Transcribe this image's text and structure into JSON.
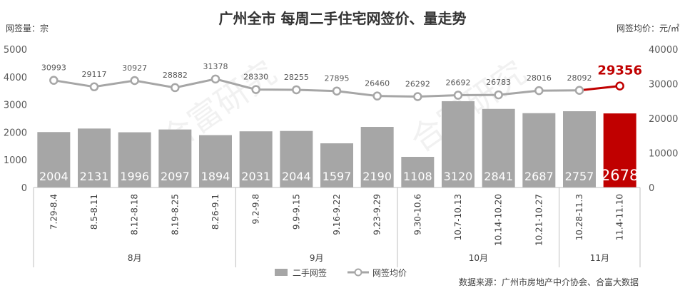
{
  "chart_data": {
    "type": "bar",
    "title": "广州全市  每周二手住宅网签价、量走势",
    "ylabel_left": "网签量：宗",
    "ylabel_right": "网签均价：元/㎡",
    "ylim_left": [
      0,
      5000
    ],
    "ylim_right": [
      0,
      40000
    ],
    "yticks_left": [
      "0",
      "1000",
      "2000",
      "3000",
      "4000",
      "5000"
    ],
    "yticks_right": [
      "0",
      "10000",
      "20000",
      "30000",
      "40000"
    ],
    "categories": [
      "7.29-8.4",
      "8.5-8.11",
      "8.12-8.18",
      "8.19-8.25",
      "8.26-9.1",
      "9.2-9.8",
      "9.9-9.15",
      "9.16-9.22",
      "9.23-9.29",
      "9.30-10.6",
      "10.7-10.13",
      "10.14-10.20",
      "10.21-10.27",
      "10.28-11.3",
      "11.4-11.10"
    ],
    "month_groups": [
      {
        "label": "8月",
        "count": 5
      },
      {
        "label": "9月",
        "count": 4
      },
      {
        "label": "10月",
        "count": 4
      },
      {
        "label": "11月",
        "count": 2
      }
    ],
    "series": [
      {
        "name": "二手网签",
        "kind": "bar",
        "axis": "left",
        "color": "#a6a6a6",
        "highlight_color": "#c00000",
        "values": [
          2004,
          2131,
          1996,
          2097,
          1894,
          2031,
          2044,
          1597,
          2190,
          1108,
          3120,
          2841,
          2687,
          2757,
          2678
        ]
      },
      {
        "name": "网签均价",
        "kind": "line",
        "axis": "right",
        "color": "#a6a6a6",
        "highlight_color": "#c00000",
        "values": [
          30993,
          29117,
          30927,
          28882,
          31378,
          28330,
          28255,
          27895,
          26460,
          26292,
          26692,
          26783,
          28016,
          28092,
          29356
        ]
      }
    ],
    "highlight_index": 14,
    "legend_position": "bottom",
    "grid": false
  },
  "source_note": "数据来源：广州市房地产中介协会、合富大数据",
  "watermark_text": "合富研究"
}
